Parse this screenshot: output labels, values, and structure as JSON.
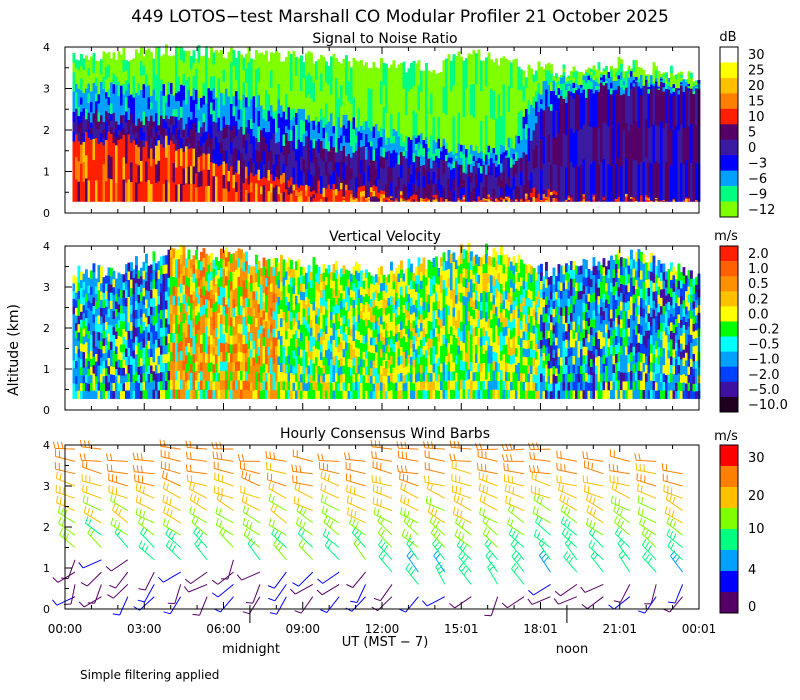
{
  "figure": {
    "title": "449 LOTOS−test Marshall CO Modular Profiler 21 October 2025",
    "ylabel": "Altitude (km)",
    "xlabel": "UT  (MST − 7)",
    "midnight_label": "midnight",
    "noon_label": "noon",
    "footnote": "Simple filtering applied",
    "x_ticks": [
      "00:00",
      "03:00",
      "06:00",
      "09:00",
      "12:00",
      "15:01",
      "18:01",
      "21:01",
      "00:01"
    ],
    "y_ticks": [
      "0",
      "1",
      "2",
      "3",
      "4"
    ]
  },
  "chart_data": [
    {
      "type": "heatmap",
      "title": "Signal to Noise Ratio",
      "units": "dB",
      "xlim": [
        0,
        24
      ],
      "ylim": [
        0,
        4
      ],
      "colorbar_labels": [
        "30",
        "25",
        "20",
        "15",
        "10",
        "5",
        "0",
        "−3",
        "−6",
        "−9",
        "−12"
      ],
      "colorbar_colors": [
        "#ffffff",
        "#ffff00",
        "#ffc000",
        "#ff8000",
        "#ff2000",
        "#550066",
        "#3a1aa0",
        "#0000ff",
        "#00a0ff",
        "#00ff80",
        "#80ff00"
      ],
      "profile": {
        "hours": [
          0.3,
          2,
          4,
          6,
          8,
          10,
          12,
          14,
          15,
          16,
          17,
          17.5,
          18,
          19,
          20,
          21,
          22,
          23.8
        ],
        "data_top_km": [
          3.8,
          3.8,
          3.9,
          3.9,
          3.8,
          3.7,
          3.6,
          3.5,
          3.8,
          3.8,
          3.6,
          3.4,
          3.5,
          3.4,
          3.5,
          3.6,
          3.5,
          3.3
        ],
        "strong_top_km": [
          1.8,
          1.8,
          1.7,
          1.2,
          0.9,
          0.6,
          0.5,
          0.3,
          0.3,
          0.3,
          0.3,
          0.4,
          0.5,
          0.3,
          0.3,
          0.3,
          0.3,
          0.3
        ],
        "moderate_top_km": [
          2.4,
          2.3,
          2.2,
          2.0,
          1.8,
          1.6,
          1.4,
          1.2,
          1.1,
          1.1,
          1.2,
          1.6,
          2.4,
          2.8,
          3.0,
          3.0,
          3.0,
          3.0
        ],
        "weak_top_km": [
          3.0,
          3.0,
          3.0,
          2.9,
          2.6,
          2.3,
          2.0,
          1.7,
          1.5,
          1.5,
          1.7,
          2.5,
          3.0,
          3.2,
          3.3,
          3.3,
          3.2,
          3.1
        ]
      }
    },
    {
      "type": "heatmap",
      "title": "Vertical Velocity",
      "units": "m/s",
      "xlim": [
        0,
        24
      ],
      "ylim": [
        0,
        4
      ],
      "colorbar_labels": [
        "2.0",
        "1.0",
        "0.5",
        "0.2",
        "0.0",
        "−0.2",
        "−0.5",
        "−1.0",
        "−2.0",
        "−5.0",
        "−10.0"
      ],
      "colorbar_colors": [
        "#ff2000",
        "#ff6000",
        "#ff9000",
        "#ffc000",
        "#ffff00",
        "#00ff00",
        "#00ffff",
        "#00a0ff",
        "#0040ff",
        "#4010a0",
        "#200020"
      ],
      "profile": {
        "hours": [
          0.3,
          2,
          4,
          6,
          8,
          10,
          12,
          14,
          15,
          16,
          17,
          17.5,
          18,
          19,
          20,
          21,
          22,
          23.8
        ],
        "data_top_km": [
          3.4,
          3.4,
          3.9,
          3.8,
          3.6,
          3.5,
          3.4,
          3.6,
          3.9,
          3.9,
          3.8,
          3.4,
          3.4,
          3.5,
          3.6,
          3.8,
          3.7,
          3.4
        ],
        "regime": [
          "down",
          "down",
          "up",
          "up",
          "mixed",
          "mixed",
          "mixed",
          "mixed",
          "mixed",
          "mixed",
          "mixed",
          "mixed",
          "down",
          "down",
          "down",
          "down",
          "down",
          "down"
        ]
      }
    },
    {
      "type": "scatter",
      "title": "Hourly Consensus Wind Barbs",
      "units": "m/s",
      "xlim": [
        0,
        24
      ],
      "ylim": [
        0,
        4
      ],
      "colorbar_labels": [
        "30",
        "20",
        "10",
        "4",
        "0"
      ],
      "colorbar_colors": [
        "#ff0000",
        "#ff8000",
        "#ffc000",
        "#80ff00",
        "#00ff80",
        "#00a0ff",
        "#0000ff",
        "#550066"
      ],
      "barbs": {
        "hours": [
          0,
          1,
          2,
          3,
          4,
          5,
          6,
          7,
          8,
          9,
          10,
          11,
          12,
          13,
          14,
          15,
          16,
          17,
          18,
          19,
          20,
          21,
          22,
          23
        ],
        "levels_km": [
          0.3,
          0.6,
          0.9,
          1.2,
          1.5,
          1.8,
          2.1,
          2.4,
          2.7,
          3.0,
          3.3,
          3.6,
          3.9
        ],
        "top_km": [
          3.9,
          3.9,
          3.6,
          3.6,
          4.0,
          4.0,
          3.9,
          3.7,
          3.6,
          3.6,
          3.6,
          3.6,
          3.9,
          4.0,
          4.0,
          4.0,
          4.0,
          3.9,
          3.9,
          3.6,
          3.6,
          3.6,
          3.6,
          3.3
        ],
        "boundary_top_km": [
          1.3,
          1.3,
          1.2,
          1.1,
          1.0,
          1.0,
          1.2,
          1.1,
          1.0,
          0.9,
          0.9,
          0.9,
          0.6,
          0.5,
          0.5,
          0.5,
          0.5,
          0.5,
          0.6,
          0.6,
          0.6,
          0.6,
          0.6,
          0.6
        ]
      }
    }
  ]
}
